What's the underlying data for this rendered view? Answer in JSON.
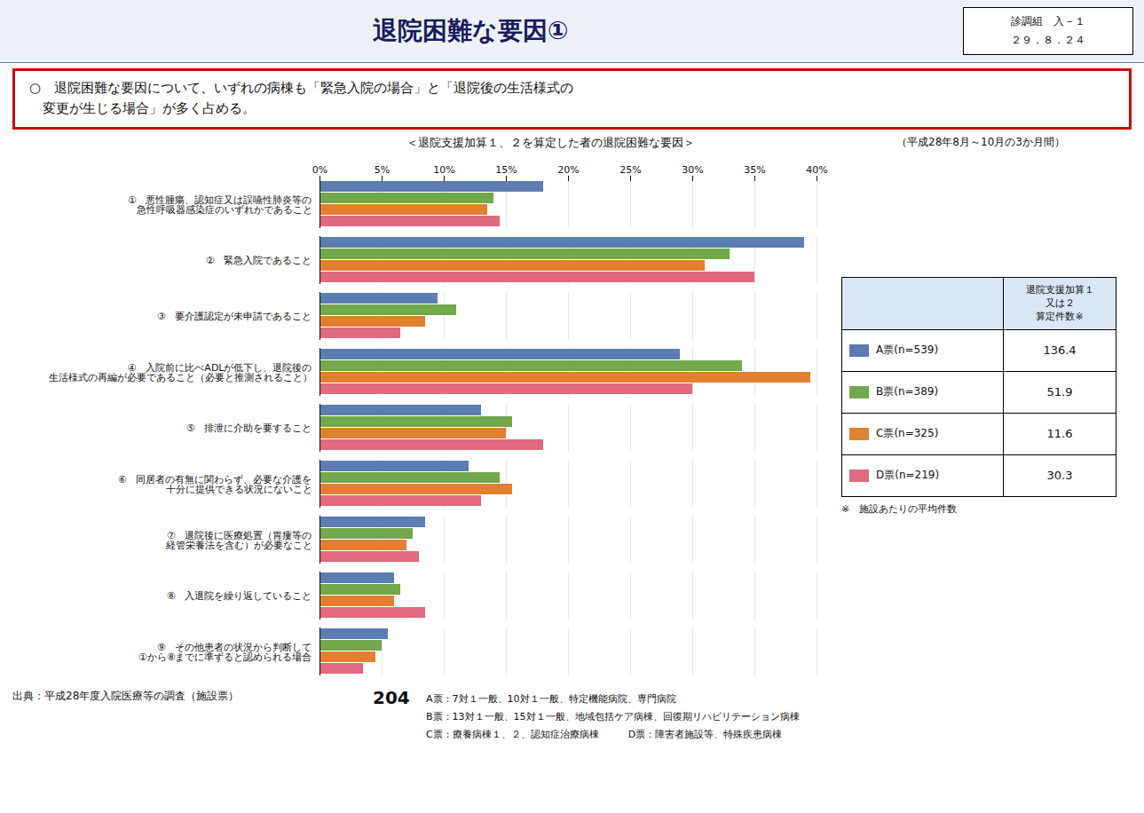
{
  "chart_data": {
    "type": "bar",
    "orientation": "horizontal",
    "title": "退院困難な要因①",
    "subtitle": "○　退院困難な要因について、いずれの病棟も「緊急入院の場合」と「退院後の生活様式の\n　変更が生じる場合」が多く占める。",
    "annotations": [
      "診調組　入－１",
      "２９．８．２４",
      "＜退院支援加算１、２を算定した者の退院困難な要因＞",
      "（平成28年8月～10月の3か月間）",
      "退院支援加算１\n又は２\n算定件数※",
      "※　施設あたりの平均件数",
      "出典：平成28年度入院医療等の調査（施設票）",
      "204",
      "A票：7対１一般、10対１一般、特定機能病院、専門病院",
      "B票：13対１一般、15対１一般、地域包括ケア病棟、回復期リハビリテーション病棟",
      "C票：療養病棟１、２、認知症治療病棟　　　D票：障害者施設等、特殊疾患病棟"
    ],
    "categories": [
      "①　悪性腫瘍、認知症又は誤嚥性肺炎等の\n　急性呼吸器感染症のいずれかであること",
      "②　緊急入院であること",
      "③　要介護認定が未申請であること",
      "④　入院前に比べADLが低下し、退院後の\n生活様式の再編が必要であること（必要と推測されること）",
      "⑤　排泄に介助を要すること",
      "⑥　同居者の有無に関わらず、必要な介護を\n　十分に提供できる状況にないこと",
      "⑦　退院後に医療処置（胃瘻等の\n　経管栄養法を含む）が必要なこと",
      "⑧　入退院を繰り返していること",
      "⑨　その他患者の状況から判断して\n①から⑧までに準ずると認められる場合"
    ],
    "series": [
      {
        "name": "A票(n=539)",
        "color": "#5b7db1",
        "count": 136.4,
        "values": [
          18.0,
          39.0,
          9.5,
          29.0,
          13.0,
          12.0,
          8.5,
          6.0,
          5.5
        ]
      },
      {
        "name": "B票(n=389)",
        "color": "#70a84b",
        "count": 51.9,
        "values": [
          14.0,
          33.0,
          11.0,
          34.0,
          15.5,
          14.5,
          7.5,
          6.5,
          5.0
        ]
      },
      {
        "name": "C票(n=325)",
        "color": "#e08030",
        "count": 11.6,
        "values": [
          13.5,
          31.0,
          8.5,
          39.5,
          15.0,
          15.5,
          7.0,
          6.0,
          4.5
        ]
      },
      {
        "name": "D票(n=219)",
        "color": "#e06880",
        "count": 30.3,
        "values": [
          14.5,
          35.0,
          6.5,
          30.0,
          18.0,
          13.0,
          8.0,
          8.5,
          3.5
        ]
      }
    ],
    "xlim": [
      0,
      40
    ],
    "xticks": [
      {
        "value": 0,
        "label": "0%"
      },
      {
        "value": 5,
        "label": "5%"
      },
      {
        "value": 10,
        "label": "10%"
      },
      {
        "value": 15,
        "label": "15%"
      },
      {
        "value": 20,
        "label": "20%"
      },
      {
        "value": 25,
        "label": "25%"
      },
      {
        "value": 30,
        "label": "30%"
      },
      {
        "value": 35,
        "label": "35%"
      },
      {
        "value": 40,
        "label": "40%"
      }
    ],
    "grid": true
  }
}
